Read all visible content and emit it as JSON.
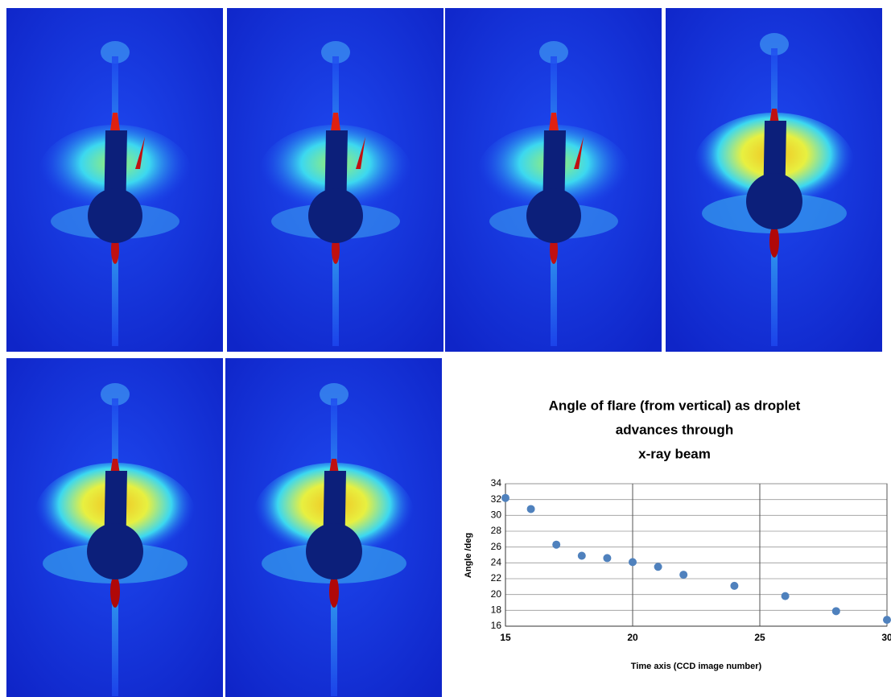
{
  "chart_data": {
    "type": "scatter",
    "title": [
      "Angle of flare (from vertical) as droplet",
      "advances through",
      "x-ray beam"
    ],
    "x_label": "Time axis (CCD image number)",
    "y_label": "Angle /deg",
    "x": [
      15,
      16,
      17,
      18,
      19,
      20,
      21,
      22,
      24,
      26,
      28,
      30
    ],
    "values": [
      32.2,
      30.8,
      26.3,
      24.9,
      24.6,
      24.1,
      23.5,
      22.5,
      21.1,
      19.8,
      17.9,
      16.8
    ],
    "color": "#4f81bd",
    "xlim": [
      15,
      30
    ],
    "xticks": [
      15,
      20,
      25,
      30
    ],
    "ylim": [
      16,
      34
    ],
    "yticks": [
      16,
      18,
      20,
      22,
      24,
      26,
      28,
      30,
      32,
      34
    ],
    "grid": true
  }
}
